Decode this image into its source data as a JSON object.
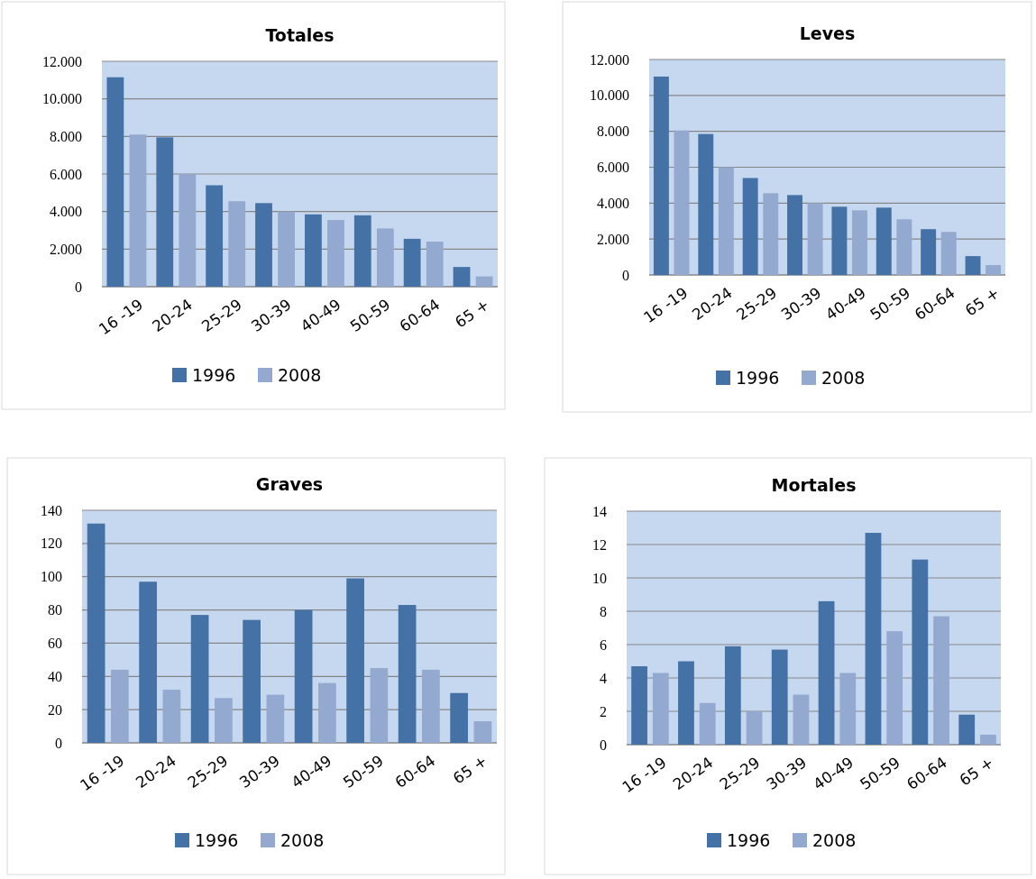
{
  "chart_data": [
    {
      "type": "bar",
      "title": "Totales",
      "categories": [
        "16 -19",
        "20-24",
        "25-29",
        "30-39",
        "40-49",
        "50-59",
        "60-64",
        "65 +"
      ],
      "series": [
        {
          "name": "1996",
          "color": "#4471a6",
          "values": [
            11150,
            7950,
            5400,
            4450,
            3850,
            3800,
            2550,
            1050
          ]
        },
        {
          "name": "2008",
          "color": "#94a9d0",
          "values": [
            8100,
            6000,
            4550,
            4000,
            3550,
            3100,
            2400,
            550
          ]
        }
      ],
      "ylim": [
        0,
        12000
      ],
      "yticks": [
        0,
        {
          "value": 2000,
          "label": "2.000"
        },
        {
          "value": 4000,
          "label": "4.000"
        },
        {
          "value": 6000,
          "label": "6.000"
        },
        {
          "value": 8000,
          "label": "8.000"
        },
        {
          "value": 10000,
          "label": "10.000"
        },
        {
          "value": 12000,
          "label": "12.000"
        }
      ],
      "grid": "y",
      "legend": "bottom"
    },
    {
      "type": "bar",
      "title": "Leves",
      "categories": [
        "16 -19",
        "20-24",
        "25-29",
        "30-39",
        "40-49",
        "50-59",
        "60-64",
        "65 +"
      ],
      "series": [
        {
          "name": "1996",
          "color": "#4471a6",
          "values": [
            11050,
            7850,
            5400,
            4450,
            3800,
            3750,
            2550,
            1050
          ]
        },
        {
          "name": "2008",
          "color": "#94a9d0",
          "values": [
            8050,
            6000,
            4550,
            4000,
            3600,
            3100,
            2400,
            550
          ]
        }
      ],
      "ylim": [
        0,
        12000
      ],
      "yticks": [
        0,
        {
          "value": 2000,
          "label": "2.000"
        },
        {
          "value": 4000,
          "label": "4.000"
        },
        {
          "value": 6000,
          "label": "6.000"
        },
        {
          "value": 8000,
          "label": "8.000"
        },
        {
          "value": 10000,
          "label": "10.000"
        },
        {
          "value": 12000,
          "label": "12.000"
        }
      ],
      "grid": "y",
      "legend": "bottom"
    },
    {
      "type": "bar",
      "title": "Graves",
      "categories": [
        "16 -19",
        "20-24",
        "25-29",
        "30-39",
        "40-49",
        "50-59",
        "60-64",
        "65 +"
      ],
      "series": [
        {
          "name": "1996",
          "color": "#4471a6",
          "values": [
            132,
            97,
            77,
            74,
            80,
            99,
            83,
            30
          ]
        },
        {
          "name": "2008",
          "color": "#94a9d0",
          "values": [
            44,
            32,
            27,
            29,
            36,
            45,
            44,
            13
          ]
        }
      ],
      "ylim": [
        0,
        140
      ],
      "yticks": [
        0,
        20,
        40,
        60,
        80,
        100,
        120,
        140
      ],
      "grid": "y",
      "legend": "bottom"
    },
    {
      "type": "bar",
      "title": "Mortales",
      "categories": [
        "16 -19",
        "20-24",
        "25-29",
        "30-39",
        "40-49",
        "50-59",
        "60-64",
        "65 +"
      ],
      "series": [
        {
          "name": "1996",
          "color": "#4471a6",
          "values": [
            4.7,
            5.0,
            5.9,
            5.7,
            8.6,
            12.7,
            11.1,
            1.8
          ]
        },
        {
          "name": "2008",
          "color": "#94a9d0",
          "values": [
            4.3,
            2.5,
            2.0,
            3.0,
            4.3,
            6.8,
            7.7,
            0.6
          ]
        }
      ],
      "ylim": [
        0,
        14
      ],
      "yticks": [
        0,
        2,
        4,
        6,
        8,
        10,
        12,
        14
      ],
      "grid": "y",
      "legend": "bottom"
    }
  ]
}
